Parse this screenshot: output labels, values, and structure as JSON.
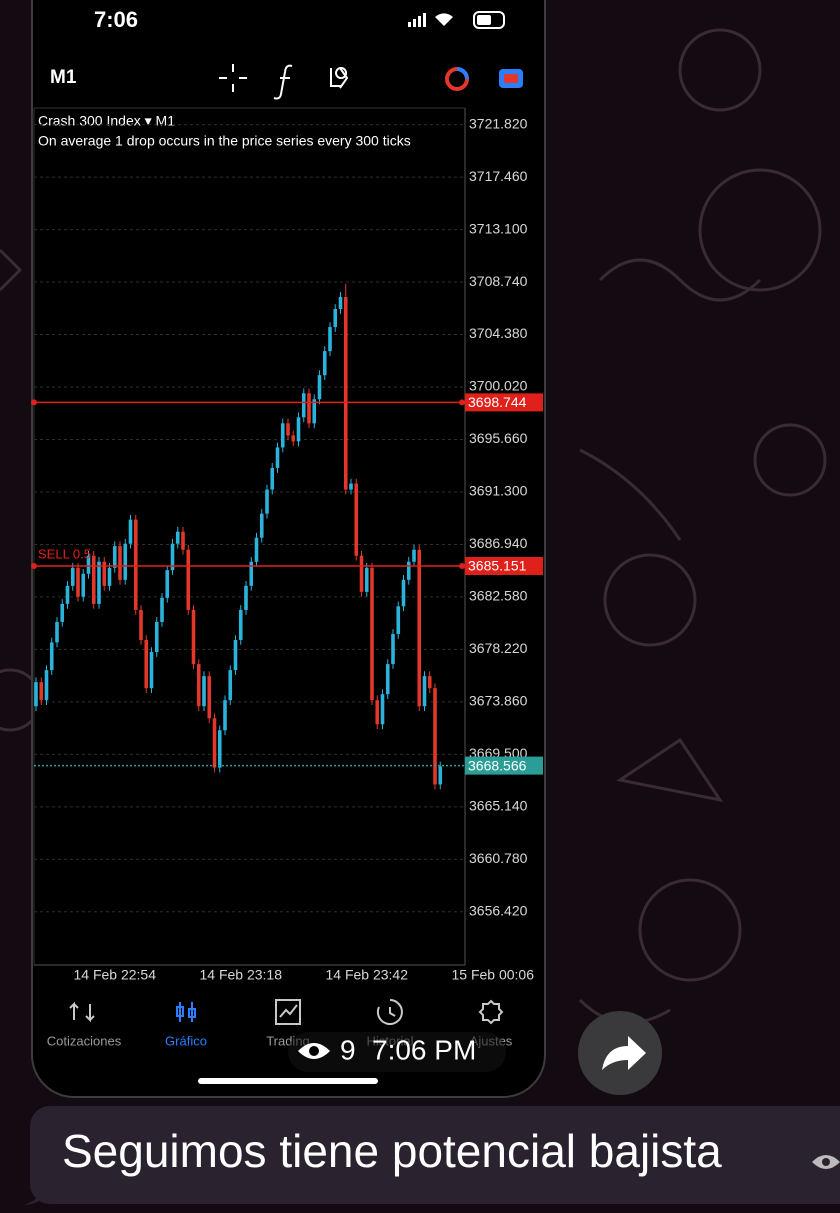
{
  "status_bar": {
    "time": "7:06"
  },
  "toolbar": {
    "timeframe": "M1"
  },
  "chart_data": {
    "type": "candlestick",
    "title": "Crash 300 Index ▾ M1",
    "subtitle": "On average 1 drop occurs in the price series every 300 ticks",
    "categories": [
      null,
      null,
      null,
      null,
      null,
      null,
      null,
      null,
      null,
      null,
      null,
      null,
      null,
      null,
      null,
      "14 Feb 22:54",
      null,
      null,
      null,
      null,
      null,
      null,
      null,
      null,
      null,
      null,
      null,
      null,
      null,
      null,
      null,
      null,
      null,
      null,
      null,
      null,
      null,
      null,
      null,
      "14 Feb 23:18",
      null,
      null,
      null,
      null,
      null,
      null,
      null,
      null,
      null,
      null,
      null,
      null,
      null,
      null,
      null,
      null,
      null,
      null,
      null,
      null,
      null,
      null,
      null,
      "14 Feb 23:42",
      null,
      null,
      null,
      null,
      null,
      null,
      null,
      null,
      null,
      null,
      null,
      null,
      null,
      null,
      null,
      null,
      null,
      null,
      null,
      null,
      null,
      null,
      null,
      "15 Feb 00:06"
    ],
    "open": [
      3673.5,
      3675.5,
      3674.0,
      3676.5,
      3678.8,
      3680.5,
      3682.0,
      3683.5,
      3685.0,
      3682.6,
      3684.5,
      3686.0,
      3682.0,
      3685.5,
      3683.5,
      3685.0,
      3686.8,
      3684.0,
      3687.0,
      3689.0,
      3681.5,
      3679.0,
      3675.0,
      3678.0,
      3680.5,
      3682.5,
      3684.8,
      3687.0,
      3688.0,
      3686.5,
      3681.5,
      3677.0,
      3673.5,
      3676.0,
      3672.5,
      3668.4,
      3671.5,
      3674.0,
      3676.5,
      3679.0,
      3681.5,
      3683.5,
      3685.5,
      3687.5,
      3689.5,
      3691.5,
      3693.3,
      3695.0,
      3697.0,
      3696.0,
      3695.5,
      3697.5,
      3699.5,
      3697.0,
      3699.0,
      3701.0,
      3703.0,
      3705.0,
      3706.5,
      3707.5,
      3691.5,
      3692.0,
      3686.0,
      3683.0,
      3685.0,
      3674.0,
      3672.0,
      3674.5,
      3677.0,
      3679.5,
      3681.8,
      3684.0,
      3685.5,
      3686.5,
      3673.5,
      3676.0,
      3675.0,
      3667.0,
      null,
      null,
      null,
      null,
      null,
      null,
      null,
      null,
      null,
      null
    ],
    "high": [
      3675.9,
      3675.9,
      3676.9,
      3679.2,
      3680.9,
      3682.4,
      3683.9,
      3685.4,
      3685.4,
      3684.9,
      3686.4,
      3686.4,
      3685.9,
      3685.9,
      3685.4,
      3687.2,
      3687.2,
      3687.4,
      3689.4,
      3689.4,
      3681.9,
      3679.4,
      3678.4,
      3680.9,
      3682.9,
      3685.2,
      3687.4,
      3688.4,
      3688.4,
      3686.9,
      3681.9,
      3677.4,
      3676.4,
      3676.4,
      3672.9,
      3671.9,
      3674.4,
      3676.9,
      3679.4,
      3681.9,
      3683.9,
      3685.9,
      3687.9,
      3689.9,
      3691.9,
      3693.7,
      3695.4,
      3697.4,
      3697.4,
      3696.4,
      3697.9,
      3699.9,
      3699.9,
      3699.4,
      3701.4,
      3703.4,
      3705.4,
      3706.9,
      3707.9,
      3708.6,
      3692.4,
      3692.4,
      3686.4,
      3685.4,
      3685.4,
      3674.4,
      3674.9,
      3677.4,
      3679.9,
      3682.2,
      3684.4,
      3685.9,
      3686.9,
      3686.9,
      3676.4,
      3676.4,
      3675.4,
      3668.9,
      null,
      null,
      null,
      null,
      null,
      null,
      null,
      null,
      null,
      null
    ],
    "low": [
      3673.1,
      3673.6,
      3673.6,
      3676.1,
      3678.4,
      3680.1,
      3681.6,
      3683.1,
      3682.2,
      3682.2,
      3684.1,
      3681.6,
      3681.6,
      3683.1,
      3683.1,
      3684.6,
      3683.6,
      3683.6,
      3686.6,
      3681.1,
      3678.6,
      3674.6,
      3674.6,
      3677.6,
      3680.1,
      3682.1,
      3684.4,
      3686.6,
      3686.1,
      3681.1,
      3676.6,
      3673.1,
      3673.1,
      3672.1,
      3668.0,
      3668.0,
      3671.1,
      3673.6,
      3676.1,
      3678.6,
      3681.1,
      3683.1,
      3685.1,
      3687.1,
      3689.1,
      3691.1,
      3692.9,
      3694.6,
      3695.6,
      3695.1,
      3695.1,
      3697.1,
      3696.6,
      3696.6,
      3698.6,
      3700.6,
      3702.6,
      3704.6,
      3706.1,
      3691.1,
      3691.1,
      3685.6,
      3682.6,
      3682.6,
      3673.6,
      3671.6,
      3671.6,
      3674.1,
      3676.6,
      3679.1,
      3681.4,
      3683.6,
      3685.1,
      3673.1,
      3673.1,
      3674.6,
      3666.6,
      3666.6,
      null,
      null,
      null,
      null,
      null,
      null,
      null,
      null,
      null,
      null
    ],
    "close": [
      3675.5,
      3674.0,
      3676.5,
      3678.8,
      3680.5,
      3682.0,
      3683.5,
      3685.0,
      3682.6,
      3684.5,
      3686.0,
      3682.0,
      3685.5,
      3683.5,
      3685.0,
      3686.8,
      3684.0,
      3687.0,
      3689.0,
      3681.5,
      3679.0,
      3675.0,
      3678.0,
      3680.5,
      3682.5,
      3684.8,
      3687.0,
      3688.0,
      3686.5,
      3681.5,
      3677.0,
      3673.5,
      3676.0,
      3672.5,
      3668.4,
      3671.5,
      3674.0,
      3676.5,
      3679.0,
      3681.5,
      3683.5,
      3685.5,
      3687.5,
      3689.5,
      3691.5,
      3693.3,
      3695.0,
      3697.0,
      3696.0,
      3695.5,
      3697.5,
      3699.5,
      3697.0,
      3699.0,
      3701.0,
      3703.0,
      3705.0,
      3706.5,
      3707.5,
      3691.5,
      3692.0,
      3686.0,
      3683.0,
      3685.0,
      3674.0,
      3672.0,
      3674.5,
      3677.0,
      3679.5,
      3681.8,
      3684.0,
      3685.5,
      3686.5,
      3673.5,
      3676.0,
      3675.0,
      3667.0,
      3668.5,
      null,
      null,
      null,
      null,
      null,
      null,
      null,
      null,
      null,
      null
    ],
    "up_color": "#2bb3dc",
    "down_color": "#e2372a",
    "ylim": [
      3652.0,
      3723.2
    ],
    "yticks": [
      {
        "value": 3721.82,
        "label": "3721.820"
      },
      {
        "value": 3717.46,
        "label": "3717.460"
      },
      {
        "value": 3713.1,
        "label": "3713.100"
      },
      {
        "value": 3708.74,
        "label": "3708.740"
      },
      {
        "value": 3704.38,
        "label": "3704.380"
      },
      {
        "value": 3700.02,
        "label": "3700.020"
      },
      {
        "value": 3695.66,
        "label": "3695.660"
      },
      {
        "value": 3691.3,
        "label": "3691.300"
      },
      {
        "value": 3686.94,
        "label": "3686.940"
      },
      {
        "value": 3682.58,
        "label": "3682.580"
      },
      {
        "value": 3678.22,
        "label": "3678.220"
      },
      {
        "value": 3673.86,
        "label": "3673.860"
      },
      {
        "value": 3669.5,
        "label": "3669.500"
      },
      {
        "value": 3665.14,
        "label": "3665.140"
      },
      {
        "value": 3660.78,
        "label": "3660.780"
      },
      {
        "value": 3656.42,
        "label": "3656.420"
      }
    ],
    "grid": true,
    "price_lines": [
      {
        "value": 3698.744,
        "color": "#e0201a",
        "style": "solid"
      },
      {
        "value": 3685.151,
        "color": "#e0201a",
        "style": "solid",
        "label": "SELL 0.5"
      },
      {
        "value": 3668.566,
        "color": "#2a9d96",
        "style": "dotted"
      }
    ]
  },
  "tabs": [
    "Cotizaciones",
    "Gráfico",
    "Trading",
    "Historial",
    "Ajustes"
  ],
  "active_tab": 1,
  "active_color": "#2a7fff",
  "overlay": {
    "views": 9,
    "time": "7:06 PM"
  },
  "message": {
    "text": "Seguimos tiene potencial bajista"
  }
}
